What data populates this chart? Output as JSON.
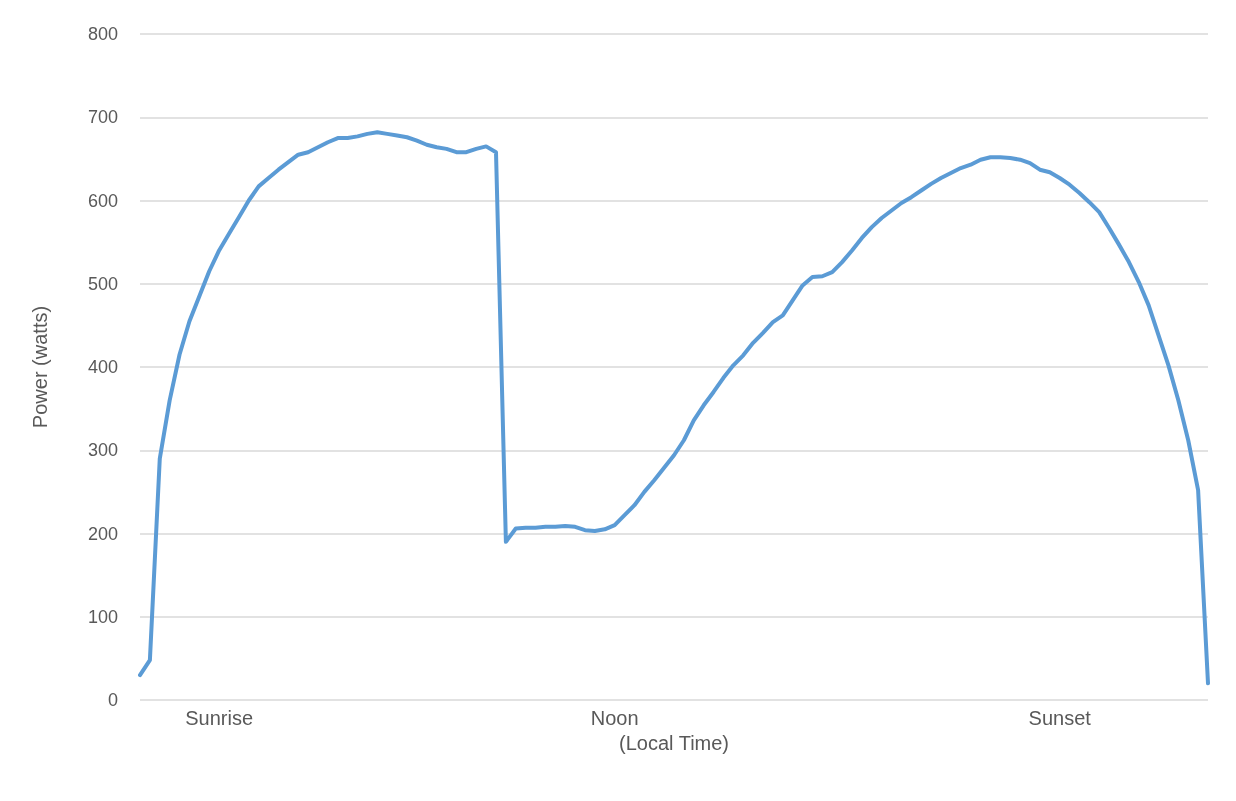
{
  "chart_data": {
    "type": "line",
    "xlabel": "(Local Time)",
    "ylabel": "Power (watts)",
    "categories": [
      null,
      null,
      null,
      null,
      null,
      null,
      null,
      null,
      "Sunrise",
      null,
      null,
      null,
      null,
      null,
      null,
      null,
      null,
      null,
      null,
      null,
      null,
      null,
      null,
      null,
      null,
      null,
      null,
      null,
      null,
      null,
      null,
      null,
      null,
      null,
      null,
      null,
      null,
      null,
      null,
      null,
      null,
      null,
      null,
      null,
      null,
      null,
      null,
      null,
      "Noon",
      null,
      null,
      null,
      null,
      null,
      null,
      null,
      null,
      null,
      null,
      null,
      null,
      null,
      null,
      null,
      null,
      null,
      null,
      null,
      null,
      null,
      null,
      null,
      null,
      null,
      null,
      null,
      null,
      null,
      null,
      null,
      null,
      null,
      null,
      null,
      null,
      null,
      null,
      null,
      null,
      null,
      null,
      null,
      null,
      "Sunset",
      null,
      null,
      null,
      null,
      null,
      null,
      null,
      null,
      null,
      null,
      null,
      null,
      null,
      null,
      null
    ],
    "series": [
      {
        "color": "#5b9bd5",
        "values": [
          30,
          48,
          290,
          360,
          415,
          455,
          485,
          515,
          540,
          560,
          580,
          600,
          617,
          627,
          637,
          646,
          655,
          658,
          664,
          670,
          675,
          675,
          677,
          680,
          682,
          680,
          678,
          676,
          672,
          667,
          664,
          662,
          658,
          658,
          662,
          665,
          658,
          190,
          206,
          207,
          207,
          208,
          208,
          209,
          208,
          204,
          203,
          205,
          210,
          222,
          234,
          250,
          264,
          279,
          294,
          312,
          336,
          354,
          370,
          387,
          402,
          414,
          429,
          441,
          454,
          462,
          480,
          498,
          508,
          509,
          514,
          526,
          540,
          555,
          568,
          579,
          588,
          597,
          604,
          612,
          620,
          627,
          633,
          639,
          643,
          649,
          652,
          652,
          651,
          649,
          645,
          637,
          634,
          627,
          619,
          609,
          598,
          586,
          567,
          547,
          526,
          502,
          474,
          438,
          402,
          360,
          312,
          252,
          20
        ]
      }
    ],
    "ylim": [
      0,
      800
    ],
    "yticks": [
      0,
      100,
      200,
      300,
      400,
      500,
      600,
      700,
      800
    ],
    "grid": "y",
    "marker": "none",
    "line_style": "solid"
  }
}
